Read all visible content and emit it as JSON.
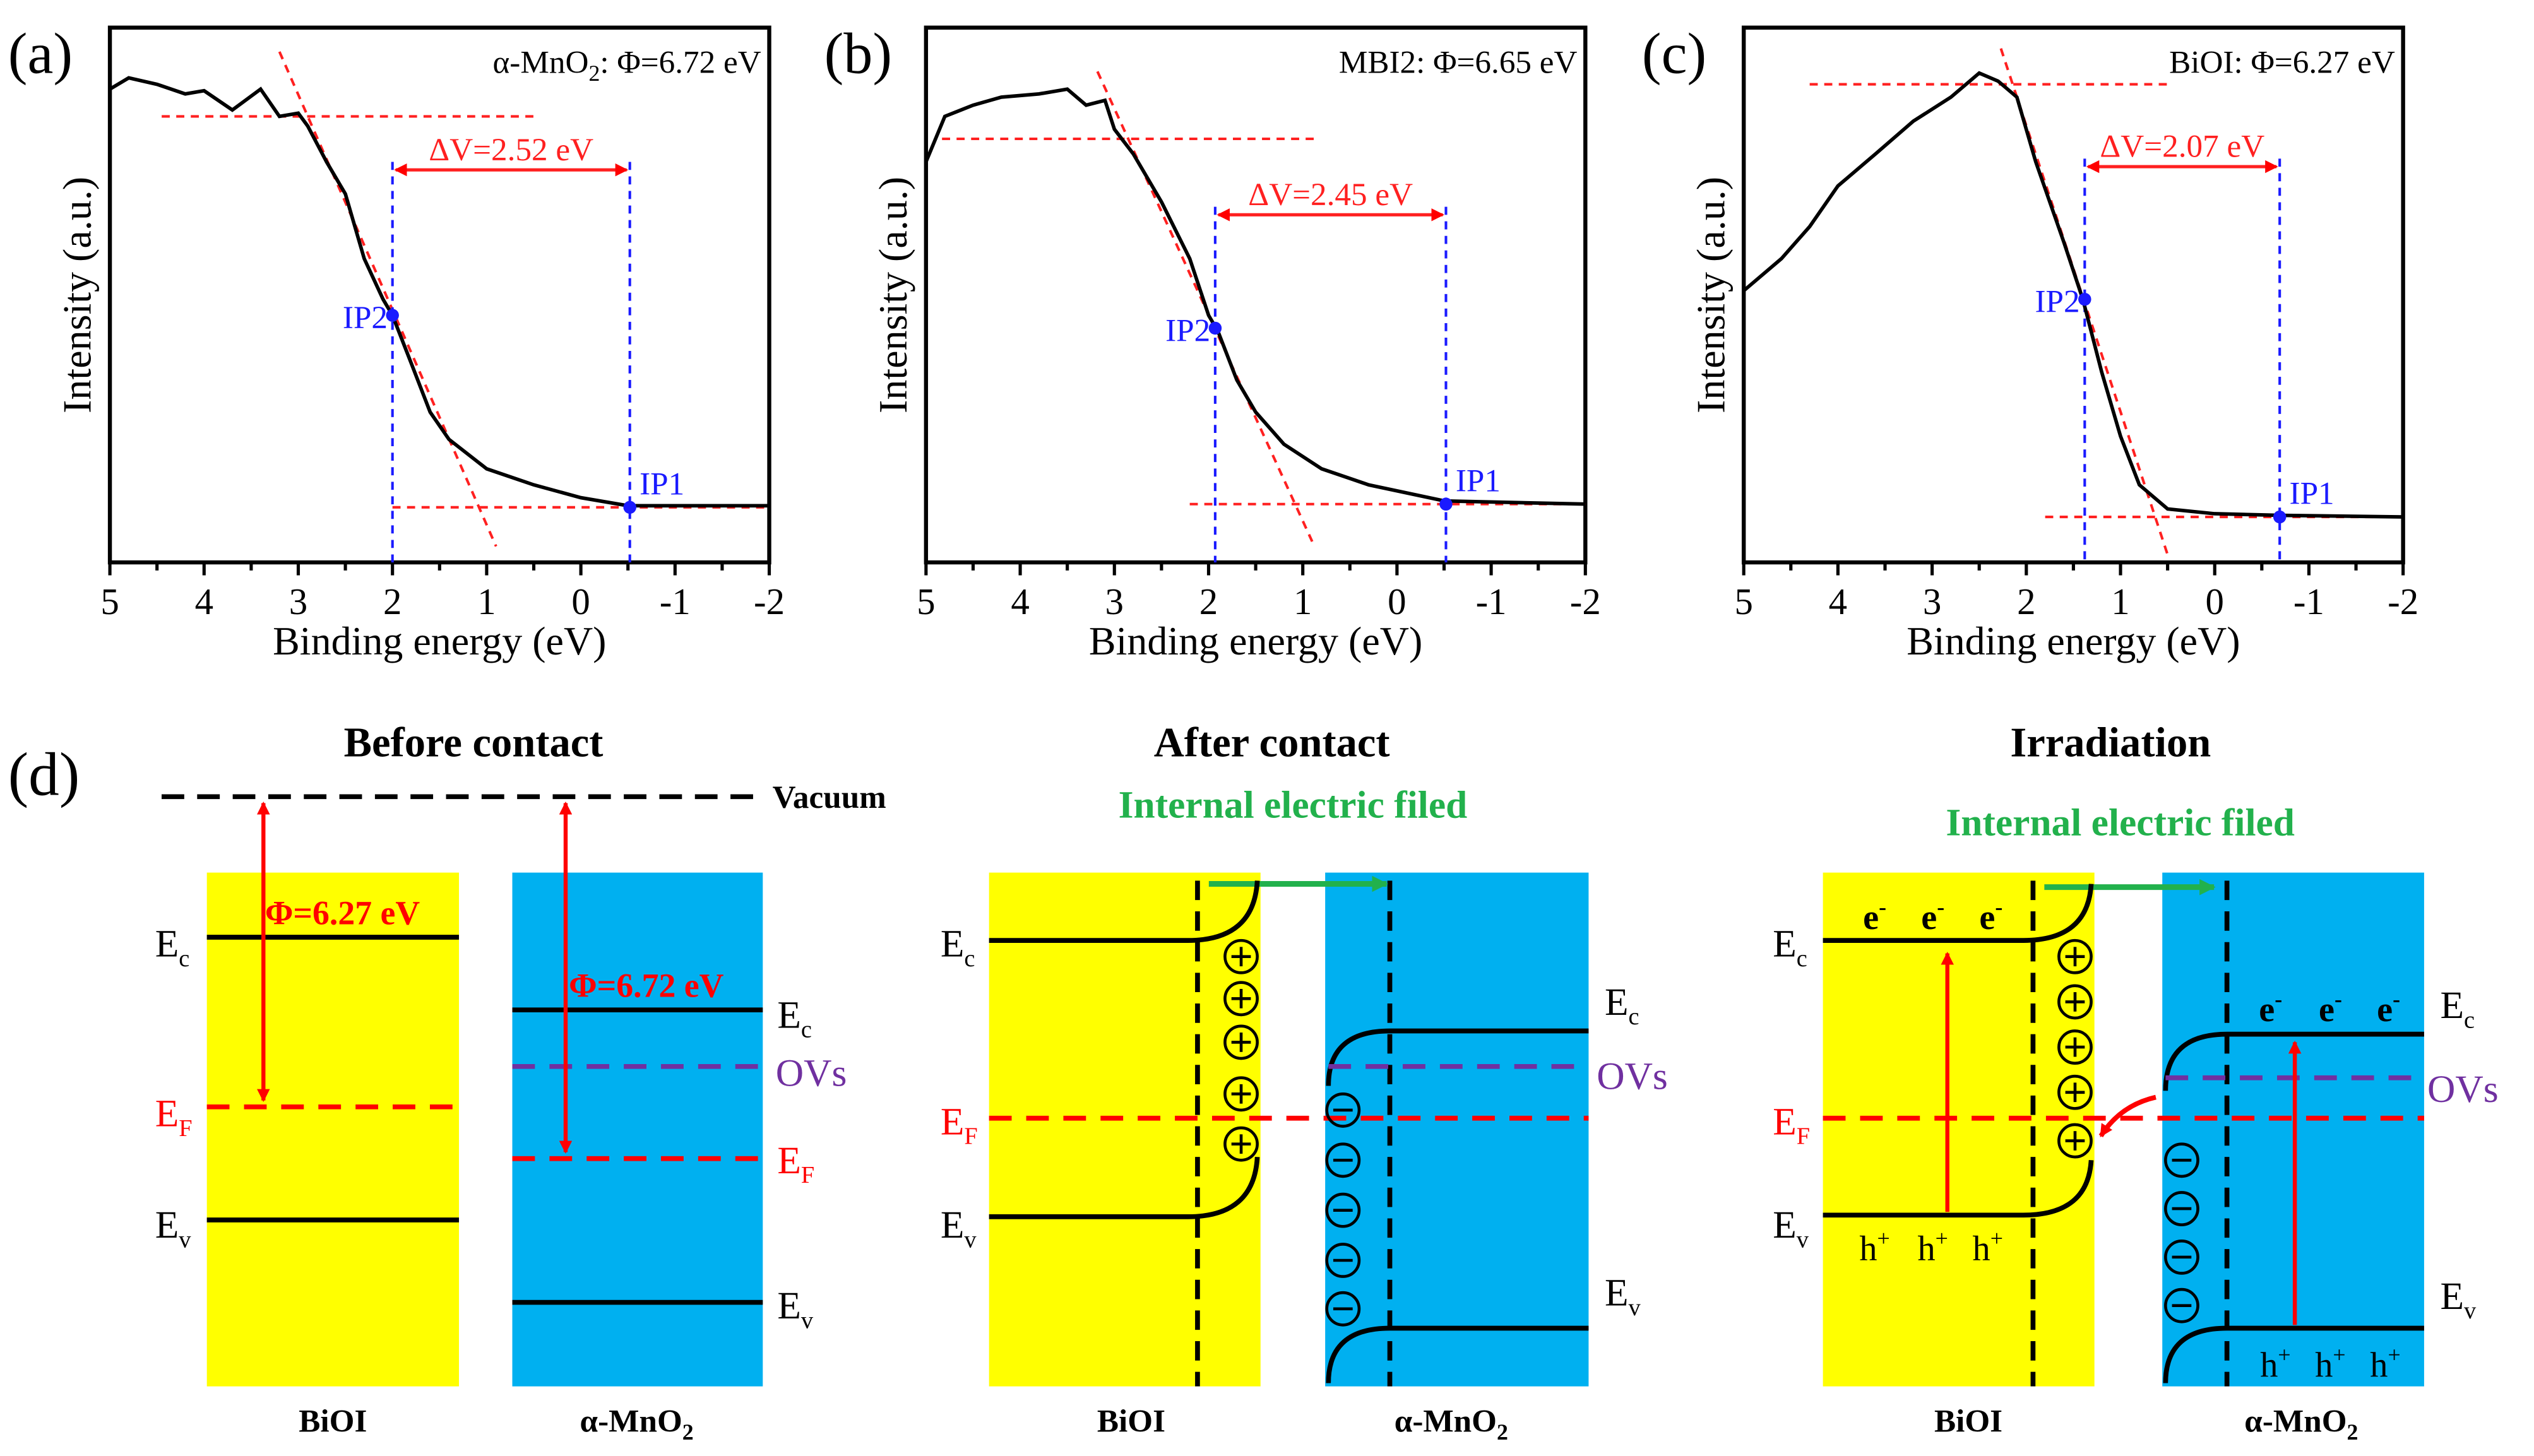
{
  "chart_data": [
    {
      "type": "line",
      "panel_label": "(a)",
      "annotation": {
        "pre": "α-MnO",
        "sub": "2",
        "post": ": Φ=6.72 eV"
      },
      "xlabel": "Binding energy (eV)",
      "ylabel": "Intensity (a.u.)",
      "xlim": [
        5,
        -2
      ],
      "ylim": [
        0,
        1
      ],
      "x_ticks": [
        "5",
        "4",
        "3",
        "2",
        "1",
        "0",
        "-1",
        "-2"
      ],
      "grid": false,
      "series": [
        {
          "x": [
            5,
            4.8,
            4.5,
            4.2,
            4.0,
            3.7,
            3.4,
            3.2,
            3.0,
            2.9,
            2.7,
            2.5,
            2.3,
            2.1,
            2.0,
            1.8,
            1.6,
            1.4,
            1.0,
            0.5,
            0,
            -0.5,
            -1,
            -2
          ],
          "y": [
            0.885,
            0.906,
            0.894,
            0.876,
            0.882,
            0.846,
            0.885,
            0.834,
            0.84,
            0.816,
            0.749,
            0.689,
            0.568,
            0.492,
            0.462,
            0.372,
            0.281,
            0.23,
            0.175,
            0.145,
            0.121,
            0.106,
            0.106,
            0.106
          ]
        }
      ],
      "fit_lines": [
        {
          "x": [
            4.45,
            0.45
          ],
          "y": [
            0.834,
            0.834
          ]
        },
        {
          "x": [
            2.0,
            -2
          ],
          "y": [
            0.103,
            0.103
          ]
        },
        {
          "x": [
            3.2,
            0.9
          ],
          "y": [
            0.955,
            0.03
          ]
        }
      ],
      "points": [
        {
          "label": "IP2",
          "x": 2.0,
          "y": 0.462
        },
        {
          "label": "IP1",
          "x": -0.52,
          "y": 0.103
        }
      ],
      "delta": {
        "label": "ΔV=2.52 eV",
        "y": 0.734,
        "line_top": 0.749
      }
    },
    {
      "type": "line",
      "panel_label": "(b)",
      "annotation": {
        "pre": "MBI2: Φ=6.65 eV",
        "sub": "",
        "post": ""
      },
      "xlabel": "Binding energy (eV)",
      "ylabel": "Intensity (a.u.)",
      "xlim": [
        5,
        -2
      ],
      "ylim": [
        0,
        1
      ],
      "x_ticks": [
        "5",
        "4",
        "3",
        "2",
        "1",
        "0",
        "-1",
        "-2"
      ],
      "grid": false,
      "series": [
        {
          "x": [
            5,
            4.8,
            4.5,
            4.2,
            3.8,
            3.5,
            3.3,
            3.1,
            3.0,
            2.8,
            2.5,
            2.2,
            2.0,
            1.9,
            1.7,
            1.5,
            1.2,
            0.8,
            0.3,
            -0.5,
            -2
          ],
          "y": [
            0.749,
            0.834,
            0.855,
            0.87,
            0.876,
            0.885,
            0.855,
            0.864,
            0.81,
            0.764,
            0.674,
            0.568,
            0.462,
            0.432,
            0.341,
            0.281,
            0.221,
            0.175,
            0.145,
            0.115,
            0.109
          ]
        }
      ],
      "fit_lines": [
        {
          "x": [
            4.83,
            0.85
          ],
          "y": [
            0.792,
            0.792
          ]
        },
        {
          "x": [
            2.2,
            -2
          ],
          "y": [
            0.109,
            0.109
          ]
        },
        {
          "x": [
            3.18,
            0.9
          ],
          "y": [
            0.918,
            0.039
          ]
        }
      ],
      "points": [
        {
          "label": "IP2",
          "x": 1.93,
          "y": 0.438
        },
        {
          "label": "IP1",
          "x": -0.52,
          "y": 0.109
        }
      ],
      "delta": {
        "label": "ΔV=2.45 eV",
        "y": 0.65,
        "line_top": 0.665
      }
    },
    {
      "type": "line",
      "panel_label": "(c)",
      "annotation": {
        "pre": "BiOI: Φ=6.27 eV",
        "sub": "",
        "post": ""
      },
      "xlabel": "Binding energy (eV)",
      "ylabel": "Intensity (a.u.)",
      "xlim": [
        5,
        -2
      ],
      "ylim": [
        0,
        1
      ],
      "x_ticks": [
        "5",
        "4",
        "3",
        "2",
        "1",
        "0",
        "-1",
        "-2"
      ],
      "grid": false,
      "series": [
        {
          "x": [
            5,
            4.6,
            4.3,
            4.0,
            3.6,
            3.2,
            2.8,
            2.5,
            2.3,
            2.1,
            1.9,
            1.6,
            1.4,
            1.2,
            1.0,
            0.8,
            0.5,
            0,
            -0.7,
            -2
          ],
          "y": [
            0.508,
            0.568,
            0.628,
            0.704,
            0.764,
            0.825,
            0.87,
            0.915,
            0.9,
            0.87,
            0.749,
            0.598,
            0.492,
            0.356,
            0.236,
            0.145,
            0.1,
            0.091,
            0.088,
            0.085
          ]
        }
      ],
      "fit_lines": [
        {
          "x": [
            4.3,
            0.44
          ],
          "y": [
            0.894,
            0.894
          ]
        },
        {
          "x": [
            1.8,
            -2
          ],
          "y": [
            0.085,
            0.085
          ]
        },
        {
          "x": [
            2.27,
            0.49
          ],
          "y": [
            0.961,
            0.009
          ]
        }
      ],
      "points": [
        {
          "label": "IP2",
          "x": 1.38,
          "y": 0.492
        },
        {
          "label": "IP1",
          "x": -0.69,
          "y": 0.085
        }
      ],
      "delta": {
        "label": "ΔV=2.07 eV",
        "y": 0.74,
        "line_top": 0.755
      }
    }
  ],
  "colors": {
    "curve": "#000000",
    "fit": "#ff2020",
    "marker": "#1a1aff",
    "bioi": "#ffff00",
    "mno2": "#00b0f0",
    "field": "#22b14c",
    "ovs": "#7030a0",
    "fermi": "#ff0000"
  },
  "diagram": {
    "panel_label": "(d)",
    "before": {
      "title": "Before contact",
      "vacuum": "Vacuum",
      "phi_bioi": "Φ=6.27 eV",
      "phi_mno2": "Φ=6.72 eV",
      "material_left": "BiOI",
      "material_right": {
        "pre": "α-MnO",
        "sub": "2"
      }
    },
    "after": {
      "title": "After contact",
      "field": "Internal electric filed",
      "material_left": "BiOI",
      "material_right": {
        "pre": "α-MnO",
        "sub": "2"
      }
    },
    "irradiation": {
      "title": "Irradiation",
      "field": "Internal electric filed",
      "electron": {
        "main": "e",
        "sup": "-"
      },
      "hole": {
        "main": "h",
        "sup": "+"
      },
      "material_left": "BiOI",
      "material_right": {
        "pre": "α-MnO",
        "sub": "2"
      }
    },
    "levels": {
      "ec": {
        "main": "E",
        "sub": "c"
      },
      "ev": {
        "main": "E",
        "sub": "v"
      },
      "ef": {
        "main": "E",
        "sub": "F"
      },
      "ovs": "OVs"
    },
    "plus": "+",
    "minus": "−"
  }
}
